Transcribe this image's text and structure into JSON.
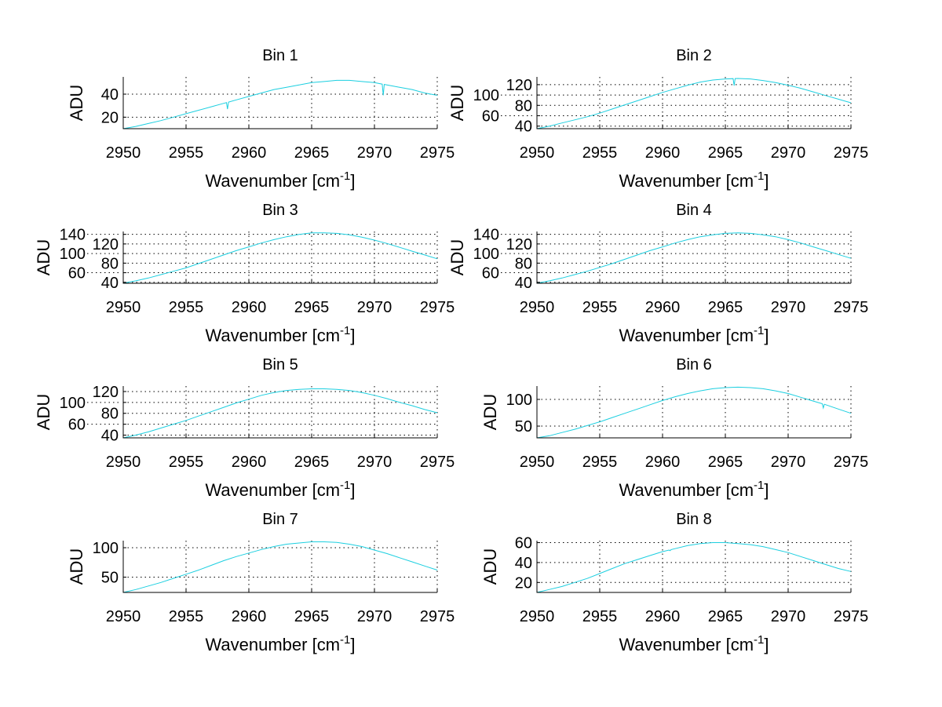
{
  "chart_data": [
    {
      "type": "line",
      "title": "Bin 1",
      "xlabel": "Wavenumber [cm",
      "xlabel_sup": "-1",
      "xlabel_end": "]",
      "ylabel": "ADU",
      "xlim": [
        2950,
        2975
      ],
      "ylim": [
        10,
        55
      ],
      "xticks": [
        2950,
        2955,
        2960,
        2965,
        2970,
        2975
      ],
      "yticks": [
        20,
        40
      ],
      "grid": true,
      "y": [
        10,
        12,
        14.5,
        17,
        20,
        23,
        26,
        29,
        32,
        35,
        38,
        41,
        44,
        46,
        48,
        50,
        51,
        52,
        52,
        51,
        50,
        48,
        46,
        44,
        41,
        39
      ],
      "dips": [
        [
          2958.3,
          27
        ],
        [
          2970.7,
          39
        ]
      ]
    },
    {
      "type": "line",
      "title": "Bin 2",
      "xlabel": "Wavenumber [cm",
      "xlabel_sup": "-1",
      "xlabel_end": "]",
      "ylabel": "ADU",
      "xlim": [
        2950,
        2975
      ],
      "ylim": [
        35,
        135
      ],
      "xticks": [
        2950,
        2955,
        2960,
        2965,
        2970,
        2975
      ],
      "yticks": [
        40,
        60,
        80,
        100,
        120
      ],
      "grid": true,
      "y": [
        35,
        40,
        46,
        52,
        58,
        65,
        73,
        81,
        89,
        97,
        105,
        112,
        119,
        125,
        129,
        131,
        132,
        131,
        128,
        124,
        119,
        113,
        106,
        99,
        92,
        85
      ],
      "dips": [
        [
          2965.7,
          118
        ]
      ]
    },
    {
      "type": "line",
      "title": "Bin 3",
      "xlabel": "Wavenumber [cm",
      "xlabel_sup": "-1",
      "xlabel_end": "]",
      "ylabel": "ADU",
      "xlim": [
        2950,
        2975
      ],
      "ylim": [
        38,
        146
      ],
      "xticks": [
        2950,
        2955,
        2960,
        2965,
        2970,
        2975
      ],
      "yticks": [
        40,
        60,
        80,
        100,
        120,
        140
      ],
      "grid": true,
      "y": [
        38,
        43,
        49,
        56,
        63,
        70,
        79,
        88,
        97,
        106,
        114,
        122,
        129,
        135,
        140,
        143,
        143,
        142,
        139,
        134,
        128,
        121,
        113,
        105,
        97,
        89
      ],
      "dips": []
    },
    {
      "type": "line",
      "title": "Bin 4",
      "xlabel": "Wavenumber [cm",
      "xlabel_sup": "-1",
      "xlabel_end": "]",
      "ylabel": "ADU",
      "xlim": [
        2950,
        2975
      ],
      "ylim": [
        38,
        146
      ],
      "xticks": [
        2950,
        2955,
        2960,
        2965,
        2970,
        2975
      ],
      "yticks": [
        40,
        60,
        80,
        100,
        120,
        140
      ],
      "grid": true,
      "y": [
        38,
        43,
        49,
        56,
        63,
        71,
        79,
        88,
        97,
        106,
        114,
        122,
        129,
        135,
        139,
        142,
        143,
        142,
        139,
        135,
        129,
        122,
        114,
        106,
        98,
        90
      ],
      "dips": []
    },
    {
      "type": "line",
      "title": "Bin 5",
      "xlabel": "Wavenumber [cm",
      "xlabel_sup": "-1",
      "xlabel_end": "]",
      "ylabel": "ADU",
      "xlim": [
        2950,
        2975
      ],
      "ylim": [
        35,
        130
      ],
      "xticks": [
        2950,
        2955,
        2960,
        2965,
        2970,
        2975
      ],
      "yticks": [
        40,
        60,
        80,
        100,
        120
      ],
      "grid": true,
      "y": [
        35,
        40,
        46,
        53,
        60,
        67,
        75,
        83,
        91,
        99,
        106,
        113,
        118,
        122,
        124,
        125,
        125,
        124,
        122,
        118,
        113,
        107,
        100,
        94,
        87,
        81
      ],
      "dips": []
    },
    {
      "type": "line",
      "title": "Bin 6",
      "xlabel": "Wavenumber [cm",
      "xlabel_sup": "-1",
      "xlabel_end": "]",
      "ylabel": "ADU",
      "xlim": [
        2950,
        2975
      ],
      "ylim": [
        28,
        125
      ],
      "xticks": [
        2950,
        2955,
        2960,
        2965,
        2970,
        2975
      ],
      "yticks": [
        50,
        100
      ],
      "grid": true,
      "y": [
        28,
        32,
        38,
        44,
        51,
        58,
        66,
        74,
        82,
        90,
        98,
        105,
        111,
        116,
        120,
        122,
        123,
        122,
        120,
        116,
        111,
        104,
        97,
        90,
        82,
        74
      ],
      "dips": [
        [
          2972.8,
          84
        ]
      ]
    },
    {
      "type": "line",
      "title": "Bin 7",
      "xlabel": "Wavenumber [cm",
      "xlabel_sup": "-1",
      "xlabel_end": "]",
      "ylabel": "ADU",
      "xlim": [
        2950,
        2975
      ],
      "ylim": [
        24,
        112
      ],
      "xticks": [
        2950,
        2955,
        2960,
        2965,
        2970,
        2975
      ],
      "yticks": [
        50,
        100
      ],
      "grid": true,
      "y": [
        24,
        29,
        35,
        41,
        48,
        55,
        62,
        70,
        78,
        85,
        91,
        97,
        102,
        106,
        108,
        110,
        110,
        109,
        106,
        102,
        96,
        90,
        83,
        76,
        69,
        62
      ],
      "dips": []
    },
    {
      "type": "line",
      "title": "Bin 8",
      "xlabel": "Wavenumber [cm",
      "xlabel_sup": "-1",
      "xlabel_end": "]",
      "ylabel": "ADU",
      "xlim": [
        2950,
        2975
      ],
      "ylim": [
        10,
        62
      ],
      "xticks": [
        2950,
        2955,
        2960,
        2965,
        2970,
        2975
      ],
      "yticks": [
        20,
        40,
        60
      ],
      "grid": true,
      "y": [
        10,
        13,
        16,
        20,
        24,
        29,
        34,
        39,
        43,
        47,
        51,
        54,
        57,
        59,
        60,
        60,
        59,
        58,
        56,
        53,
        50,
        46,
        42,
        38,
        34,
        31
      ],
      "dips": [
        [
          2960.6,
          52
        ]
      ]
    }
  ],
  "x_start": 2950,
  "x_step": 1,
  "colors": {
    "series": "#1ccfe0",
    "axis": "#000000",
    "background": "#ffffff"
  }
}
